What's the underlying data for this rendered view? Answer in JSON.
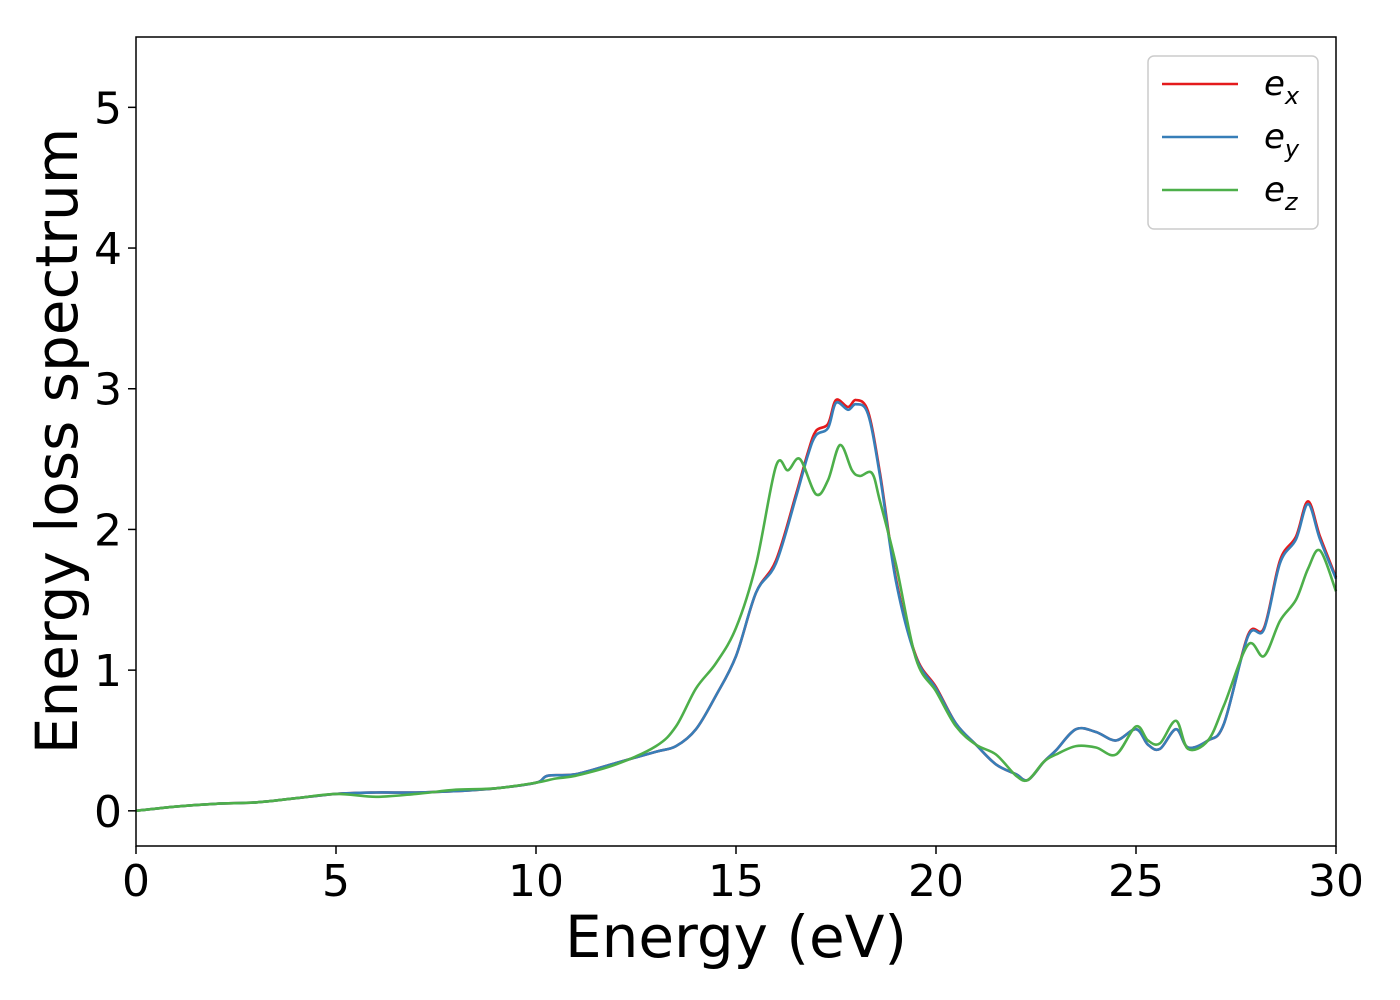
{
  "chart_data": {
    "type": "line",
    "xlabel": "Energy (eV)",
    "ylabel": "Energy loss spectrum",
    "xlim": [
      0,
      30
    ],
    "ylim": [
      -0.25,
      5.5
    ],
    "xticks": [
      0,
      5,
      10,
      15,
      20,
      25,
      30
    ],
    "yticks": [
      0,
      1,
      2,
      3,
      4,
      5
    ],
    "grid": false,
    "legend_position": "top-right",
    "series": [
      {
        "name": "e_x",
        "legend_base": "e",
        "legend_sub": "x",
        "color": "#e41a1c",
        "points": [
          [
            0,
            0
          ],
          [
            1,
            0.03
          ],
          [
            2,
            0.05
          ],
          [
            3,
            0.06
          ],
          [
            4,
            0.09
          ],
          [
            5,
            0.12
          ],
          [
            6,
            0.13
          ],
          [
            7,
            0.13
          ],
          [
            8,
            0.14
          ],
          [
            9,
            0.16
          ],
          [
            10,
            0.2
          ],
          [
            10.3,
            0.25
          ],
          [
            11,
            0.26
          ],
          [
            12,
            0.34
          ],
          [
            13,
            0.42
          ],
          [
            13.5,
            0.46
          ],
          [
            14,
            0.58
          ],
          [
            14.5,
            0.82
          ],
          [
            15,
            1.1
          ],
          [
            15.5,
            1.55
          ],
          [
            16,
            1.78
          ],
          [
            16.5,
            2.25
          ],
          [
            16.8,
            2.55
          ],
          [
            17,
            2.7
          ],
          [
            17.3,
            2.75
          ],
          [
            17.5,
            2.92
          ],
          [
            17.8,
            2.87
          ],
          [
            18,
            2.92
          ],
          [
            18.3,
            2.84
          ],
          [
            18.6,
            2.4
          ],
          [
            19,
            1.65
          ],
          [
            19.5,
            1.1
          ],
          [
            20,
            0.88
          ],
          [
            20.5,
            0.62
          ],
          [
            21,
            0.47
          ],
          [
            21.5,
            0.33
          ],
          [
            22,
            0.26
          ],
          [
            22.3,
            0.22
          ],
          [
            22.7,
            0.35
          ],
          [
            23,
            0.43
          ],
          [
            23.5,
            0.58
          ],
          [
            24,
            0.56
          ],
          [
            24.5,
            0.5
          ],
          [
            25,
            0.58
          ],
          [
            25.3,
            0.47
          ],
          [
            25.6,
            0.44
          ],
          [
            26,
            0.58
          ],
          [
            26.3,
            0.45
          ],
          [
            26.8,
            0.5
          ],
          [
            27.2,
            0.62
          ],
          [
            27.8,
            1.25
          ],
          [
            28.2,
            1.3
          ],
          [
            28.6,
            1.78
          ],
          [
            29,
            1.95
          ],
          [
            29.3,
            2.2
          ],
          [
            29.6,
            1.95
          ],
          [
            30,
            1.66
          ]
        ]
      },
      {
        "name": "e_y",
        "legend_base": "e",
        "legend_sub": "y",
        "color": "#377eb8",
        "points": [
          [
            0,
            0
          ],
          [
            1,
            0.03
          ],
          [
            2,
            0.05
          ],
          [
            3,
            0.06
          ],
          [
            4,
            0.09
          ],
          [
            5,
            0.12
          ],
          [
            6,
            0.13
          ],
          [
            7,
            0.13
          ],
          [
            8,
            0.14
          ],
          [
            9,
            0.16
          ],
          [
            10,
            0.2
          ],
          [
            10.3,
            0.25
          ],
          [
            11,
            0.26
          ],
          [
            12,
            0.34
          ],
          [
            13,
            0.42
          ],
          [
            13.5,
            0.46
          ],
          [
            14,
            0.58
          ],
          [
            14.5,
            0.82
          ],
          [
            15,
            1.1
          ],
          [
            15.5,
            1.55
          ],
          [
            16,
            1.76
          ],
          [
            16.5,
            2.23
          ],
          [
            16.8,
            2.53
          ],
          [
            17,
            2.67
          ],
          [
            17.3,
            2.72
          ],
          [
            17.5,
            2.9
          ],
          [
            17.8,
            2.85
          ],
          [
            18,
            2.89
          ],
          [
            18.3,
            2.82
          ],
          [
            18.6,
            2.38
          ],
          [
            19,
            1.63
          ],
          [
            19.5,
            1.09
          ],
          [
            20,
            0.87
          ],
          [
            20.5,
            0.62
          ],
          [
            21,
            0.47
          ],
          [
            21.5,
            0.33
          ],
          [
            22,
            0.26
          ],
          [
            22.3,
            0.22
          ],
          [
            22.7,
            0.35
          ],
          [
            23,
            0.43
          ],
          [
            23.5,
            0.58
          ],
          [
            24,
            0.56
          ],
          [
            24.5,
            0.5
          ],
          [
            25,
            0.58
          ],
          [
            25.3,
            0.47
          ],
          [
            25.6,
            0.44
          ],
          [
            26,
            0.58
          ],
          [
            26.3,
            0.45
          ],
          [
            26.8,
            0.5
          ],
          [
            27.2,
            0.62
          ],
          [
            27.8,
            1.24
          ],
          [
            28.2,
            1.29
          ],
          [
            28.6,
            1.76
          ],
          [
            29,
            1.93
          ],
          [
            29.3,
            2.18
          ],
          [
            29.6,
            1.93
          ],
          [
            30,
            1.65
          ]
        ]
      },
      {
        "name": "e_z",
        "legend_base": "e",
        "legend_sub": "z",
        "color": "#4daf4a",
        "points": [
          [
            0,
            0
          ],
          [
            1,
            0.03
          ],
          [
            2,
            0.05
          ],
          [
            3,
            0.06
          ],
          [
            4,
            0.09
          ],
          [
            5,
            0.12
          ],
          [
            6,
            0.1
          ],
          [
            7,
            0.12
          ],
          [
            8,
            0.15
          ],
          [
            9,
            0.16
          ],
          [
            10,
            0.2
          ],
          [
            10.5,
            0.23
          ],
          [
            11,
            0.25
          ],
          [
            12,
            0.33
          ],
          [
            13,
            0.46
          ],
          [
            13.5,
            0.6
          ],
          [
            14,
            0.87
          ],
          [
            14.5,
            1.05
          ],
          [
            15,
            1.3
          ],
          [
            15.5,
            1.75
          ],
          [
            16,
            2.45
          ],
          [
            16.3,
            2.42
          ],
          [
            16.6,
            2.5
          ],
          [
            17,
            2.25
          ],
          [
            17.3,
            2.35
          ],
          [
            17.6,
            2.6
          ],
          [
            17.9,
            2.42
          ],
          [
            18.1,
            2.38
          ],
          [
            18.4,
            2.4
          ],
          [
            18.6,
            2.2
          ],
          [
            19,
            1.75
          ],
          [
            19.5,
            1.08
          ],
          [
            20,
            0.85
          ],
          [
            20.5,
            0.6
          ],
          [
            21,
            0.47
          ],
          [
            21.5,
            0.4
          ],
          [
            22,
            0.25
          ],
          [
            22.3,
            0.22
          ],
          [
            22.7,
            0.35
          ],
          [
            23,
            0.4
          ],
          [
            23.5,
            0.46
          ],
          [
            24,
            0.45
          ],
          [
            24.5,
            0.4
          ],
          [
            25,
            0.6
          ],
          [
            25.3,
            0.5
          ],
          [
            25.6,
            0.48
          ],
          [
            26,
            0.64
          ],
          [
            26.3,
            0.44
          ],
          [
            26.8,
            0.5
          ],
          [
            27.2,
            0.75
          ],
          [
            27.8,
            1.18
          ],
          [
            28.2,
            1.1
          ],
          [
            28.6,
            1.35
          ],
          [
            29,
            1.5
          ],
          [
            29.3,
            1.72
          ],
          [
            29.6,
            1.85
          ],
          [
            30,
            1.56
          ]
        ]
      }
    ]
  }
}
